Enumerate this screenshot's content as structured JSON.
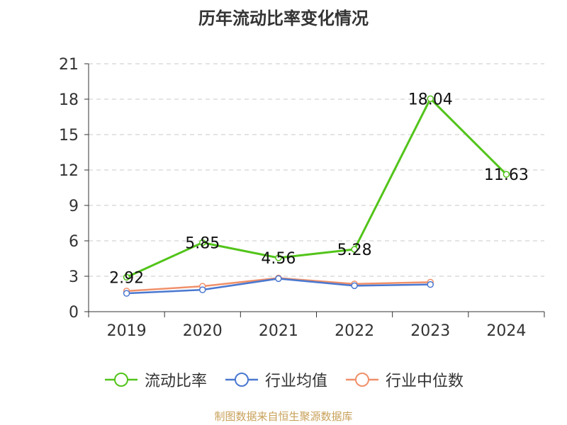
{
  "chart_data": {
    "type": "line",
    "title": "历年流动比率变化情况",
    "categories": [
      "2019",
      "2020",
      "2021",
      "2022",
      "2023",
      "2024"
    ],
    "ylim": [
      0,
      21
    ],
    "yticks": [
      0,
      3,
      6,
      9,
      12,
      15,
      18,
      21
    ],
    "grid": true,
    "legend_position": "bottom",
    "series": [
      {
        "name": "流动比率",
        "color": "#52c41a",
        "values": [
          2.92,
          5.85,
          4.56,
          5.28,
          18.04,
          11.63
        ],
        "labels": [
          "2.92",
          "5.85",
          "4.56",
          "5.28",
          "18.04",
          "11.63"
        ]
      },
      {
        "name": "行业均值",
        "color": "#4a78d0",
        "values": [
          1.55,
          1.85,
          2.8,
          2.2,
          2.3,
          null
        ]
      },
      {
        "name": "行业中位数",
        "color": "#f0906a",
        "values": [
          1.75,
          2.15,
          2.85,
          2.35,
          2.5,
          null
        ]
      }
    ]
  },
  "source": "制图数据来自恒生聚源数据库"
}
